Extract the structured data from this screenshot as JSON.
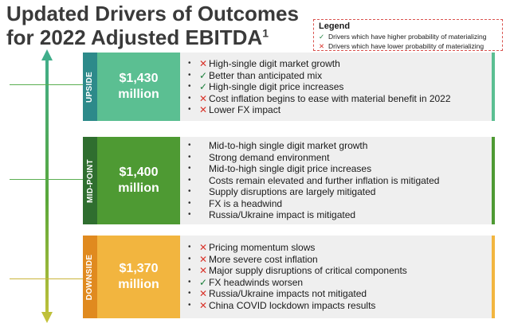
{
  "title": {
    "line1": "Updated Drivers of Outcomes",
    "line2": "for 2022 Adjusted EBITDA",
    "footnote": "1"
  },
  "legend": {
    "title": "Legend",
    "rows": [
      {
        "type": "check",
        "text": "Drivers which have higher probability of materializing"
      },
      {
        "type": "x",
        "text": "Drivers which have lower probability of materializing"
      }
    ]
  },
  "colors": {
    "upside": "#5bbf92",
    "upside_side": "#2d8a8a",
    "midpoint": "#4e9a33",
    "midpoint_side": "#2f6e2f",
    "downside": "#f2b53f",
    "downside_side": "#e08a1f",
    "check": "#1b7f3a",
    "x": "#d9342b"
  },
  "panels": [
    {
      "label": "UPSIDE",
      "value_line1": "$1,430",
      "value_line2": "million",
      "items": [
        {
          "mark": "x",
          "text": "High-single digit market growth"
        },
        {
          "mark": "check",
          "text": "Better than anticipated mix"
        },
        {
          "mark": "check",
          "text": "High-single digit price increases"
        },
        {
          "mark": "x",
          "text": "Cost inflation begins to ease with material benefit in 2022"
        },
        {
          "mark": "x",
          "text": "Lower FX impact"
        }
      ]
    },
    {
      "label": "MID-POINT",
      "value_line1": "$1,400",
      "value_line2": "million",
      "items": [
        {
          "mark": "none",
          "text": "Mid-to-high single digit market growth"
        },
        {
          "mark": "none",
          "text": "Strong demand environment"
        },
        {
          "mark": "none",
          "text": "Mid-to-high single digit price increases"
        },
        {
          "mark": "none",
          "text": "Costs remain elevated and further inflation is mitigated"
        },
        {
          "mark": "none",
          "text": "Supply disruptions are largely mitigated"
        },
        {
          "mark": "none",
          "text": "FX is a headwind"
        },
        {
          "mark": "none",
          "text": "Russia/Ukraine impact is mitigated"
        }
      ]
    },
    {
      "label": "DOWNSIDE",
      "value_line1": "$1,370",
      "value_line2": "million",
      "items": [
        {
          "mark": "x",
          "text": "Pricing momentum slows"
        },
        {
          "mark": "x",
          "text": "More severe cost inflation"
        },
        {
          "mark": "x",
          "text": "Major supply disruptions of critical components"
        },
        {
          "mark": "check",
          "text": "FX headwinds worsen"
        },
        {
          "mark": "x",
          "text": "Russia/Ukraine impacts not mitigated"
        },
        {
          "mark": "x",
          "text": "China COVID lockdown impacts results"
        }
      ]
    }
  ]
}
